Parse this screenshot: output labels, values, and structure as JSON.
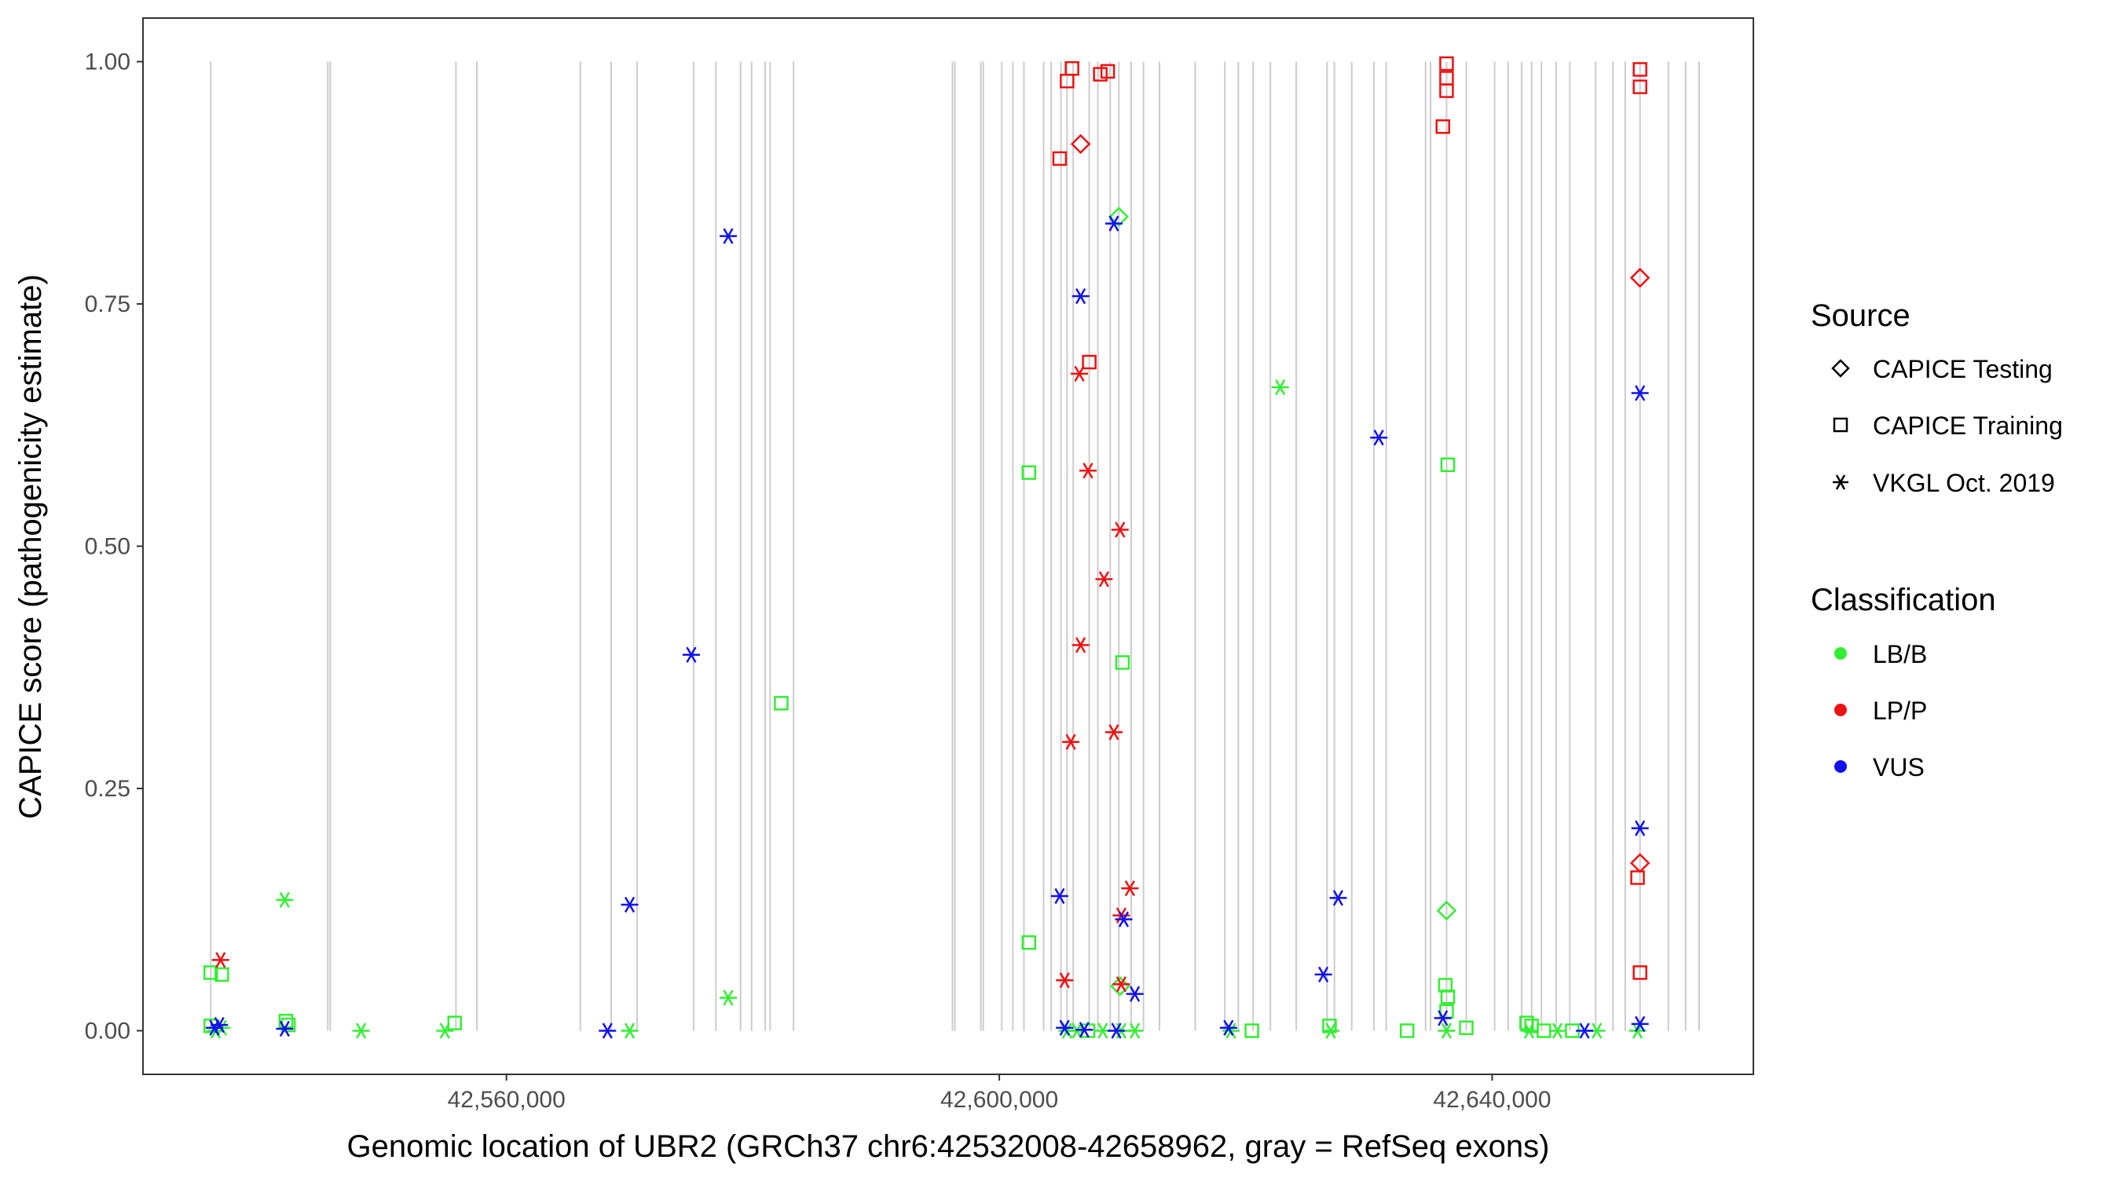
{
  "chart_data": {
    "type": "scatter",
    "xlabel": "Genomic location of UBR2 (GRCh37 chr6:42532008-42658962, gray = RefSeq exons)",
    "ylabel": "CAPICE score (pathogenicity estimate)",
    "xlim": [
      42530500,
      42661200
    ],
    "ylim": [
      -0.045,
      1.045
    ],
    "x_ticks": [
      42560000,
      42600000,
      42640000
    ],
    "x_tick_labels": [
      "42,560,000",
      "42,600,000",
      "42,640,000"
    ],
    "y_ticks": [
      0,
      0.25,
      0.5,
      0.75,
      1.0
    ],
    "y_tick_labels": [
      "0.00",
      "0.25",
      "0.50",
      "0.75",
      "1.00"
    ],
    "exons": [
      42536000,
      42545500,
      42545700,
      42555900,
      42557600,
      42566000,
      42568500,
      42570600,
      42575200,
      42577000,
      42579000,
      42579900,
      42581000,
      42581400,
      42583300,
      42596200,
      42596400,
      42598500,
      42598700,
      42600200,
      42601100,
      42602000,
      42603600,
      42604200,
      42605000,
      42605500,
      42606000,
      42607300,
      42608000,
      42609000,
      42609700,
      42610700,
      42611700,
      42613000,
      42615900,
      42618300,
      42619400,
      42620600,
      42622000,
      42624100,
      42626600,
      42627200,
      42628600,
      42630400,
      42631400,
      42634600,
      42635000,
      42636300,
      42637900,
      42640200,
      42641300,
      42642400,
      42643200,
      42644000,
      42645200,
      42646300,
      42648400,
      42649800,
      42650800,
      42652000,
      42654300,
      42655700,
      42656800
    ],
    "legend_placement": "right",
    "grid": false,
    "legend": {
      "source_title": "Source",
      "source_entries": [
        {
          "key": "testing",
          "label": "CAPICE Testing"
        },
        {
          "key": "training",
          "label": "CAPICE Training"
        },
        {
          "key": "vkgl",
          "label": "VKGL Oct. 2019"
        }
      ],
      "class_title": "Classification",
      "class_entries": [
        {
          "key": "LB",
          "label": "LB/B"
        },
        {
          "key": "LP",
          "label": "LP/P"
        },
        {
          "key": "VUS",
          "label": "VUS"
        }
      ]
    },
    "colors": {
      "LB": "#33ee33",
      "LP": "#ee1111",
      "VUS": "#1111ee",
      "exon": "#cccccc",
      "axis": "#333333",
      "tick": "#333333"
    },
    "series": [
      {
        "name": "LB/B",
        "cls": "LB",
        "points": [
          {
            "x": 42536000,
            "y": 0.06,
            "s": "training"
          },
          {
            "x": 42536900,
            "y": 0.058,
            "s": "training"
          },
          {
            "x": 42536000,
            "y": 0.005,
            "s": "training"
          },
          {
            "x": 42536400,
            "y": 0.0,
            "s": "vkgl"
          },
          {
            "x": 42536900,
            "y": 0.003,
            "s": "vkgl"
          },
          {
            "x": 42542000,
            "y": 0.135,
            "s": "vkgl"
          },
          {
            "x": 42542100,
            "y": 0.01,
            "s": "training"
          },
          {
            "x": 42542300,
            "y": 0.006,
            "s": "training"
          },
          {
            "x": 42548200,
            "y": 0.0,
            "s": "vkgl"
          },
          {
            "x": 42555000,
            "y": 0.0,
            "s": "vkgl"
          },
          {
            "x": 42555800,
            "y": 0.008,
            "s": "training"
          },
          {
            "x": 42570000,
            "y": 0.0,
            "s": "vkgl"
          },
          {
            "x": 42578000,
            "y": 0.034,
            "s": "vkgl"
          },
          {
            "x": 42582300,
            "y": 0.338,
            "s": "training"
          },
          {
            "x": 42602400,
            "y": 0.576,
            "s": "training"
          },
          {
            "x": 42602400,
            "y": 0.091,
            "s": "training"
          },
          {
            "x": 42609700,
            "y": 0.84,
            "s": "testing"
          },
          {
            "x": 42610000,
            "y": 0.38,
            "s": "training"
          },
          {
            "x": 42609800,
            "y": 0.046,
            "s": "testing"
          },
          {
            "x": 42605500,
            "y": 0.0,
            "s": "vkgl"
          },
          {
            "x": 42606300,
            "y": 0.0,
            "s": "vkgl"
          },
          {
            "x": 42607200,
            "y": 0.0,
            "s": "training"
          },
          {
            "x": 42608400,
            "y": 0.0,
            "s": "vkgl"
          },
          {
            "x": 42609900,
            "y": 0.0,
            "s": "vkgl"
          },
          {
            "x": 42611000,
            "y": 0.0,
            "s": "vkgl"
          },
          {
            "x": 42622800,
            "y": 0.664,
            "s": "vkgl"
          },
          {
            "x": 42618800,
            "y": 0.0,
            "s": "vkgl"
          },
          {
            "x": 42620500,
            "y": 0.0,
            "s": "training"
          },
          {
            "x": 42626800,
            "y": 0.005,
            "s": "training"
          },
          {
            "x": 42626900,
            "y": 0.0,
            "s": "vkgl"
          },
          {
            "x": 42633100,
            "y": 0.0,
            "s": "training"
          },
          {
            "x": 42636400,
            "y": 0.584,
            "s": "training"
          },
          {
            "x": 42636300,
            "y": 0.124,
            "s": "testing"
          },
          {
            "x": 42636200,
            "y": 0.047,
            "s": "training"
          },
          {
            "x": 42636400,
            "y": 0.035,
            "s": "training"
          },
          {
            "x": 42636300,
            "y": 0.02,
            "s": "training"
          },
          {
            "x": 42636300,
            "y": 0.0,
            "s": "vkgl"
          },
          {
            "x": 42637900,
            "y": 0.003,
            "s": "training"
          },
          {
            "x": 42642800,
            "y": 0.008,
            "s": "training"
          },
          {
            "x": 42643200,
            "y": 0.005,
            "s": "training"
          },
          {
            "x": 42643000,
            "y": 0.0,
            "s": "vkgl"
          },
          {
            "x": 42644200,
            "y": 0.0,
            "s": "training"
          },
          {
            "x": 42645300,
            "y": 0.0,
            "s": "vkgl"
          },
          {
            "x": 42646500,
            "y": 0.0,
            "s": "training"
          },
          {
            "x": 42648500,
            "y": 0.0,
            "s": "vkgl"
          },
          {
            "x": 42651800,
            "y": 0.0,
            "s": "vkgl"
          }
        ]
      },
      {
        "name": "LP/P",
        "cls": "LP",
        "points": [
          {
            "x": 42536800,
            "y": 0.073,
            "s": "vkgl"
          },
          {
            "x": 42605900,
            "y": 0.993,
            "s": "training"
          },
          {
            "x": 42605500,
            "y": 0.98,
            "s": "training"
          },
          {
            "x": 42608200,
            "y": 0.987,
            "s": "training"
          },
          {
            "x": 42608800,
            "y": 0.99,
            "s": "training"
          },
          {
            "x": 42606600,
            "y": 0.915,
            "s": "testing"
          },
          {
            "x": 42604900,
            "y": 0.9,
            "s": "training"
          },
          {
            "x": 42607300,
            "y": 0.69,
            "s": "training"
          },
          {
            "x": 42606500,
            "y": 0.678,
            "s": "vkgl"
          },
          {
            "x": 42607200,
            "y": 0.578,
            "s": "vkgl"
          },
          {
            "x": 42609800,
            "y": 0.517,
            "s": "vkgl"
          },
          {
            "x": 42608500,
            "y": 0.466,
            "s": "vkgl"
          },
          {
            "x": 42606600,
            "y": 0.398,
            "s": "vkgl"
          },
          {
            "x": 42609300,
            "y": 0.308,
            "s": "vkgl"
          },
          {
            "x": 42605800,
            "y": 0.298,
            "s": "vkgl"
          },
          {
            "x": 42610600,
            "y": 0.147,
            "s": "vkgl"
          },
          {
            "x": 42609900,
            "y": 0.119,
            "s": "vkgl"
          },
          {
            "x": 42605300,
            "y": 0.052,
            "s": "vkgl"
          },
          {
            "x": 42609900,
            "y": 0.048,
            "s": "vkgl"
          },
          {
            "x": 42636300,
            "y": 0.998,
            "s": "training"
          },
          {
            "x": 42636300,
            "y": 0.983,
            "s": "training"
          },
          {
            "x": 42636300,
            "y": 0.97,
            "s": "training"
          },
          {
            "x": 42636000,
            "y": 0.933,
            "s": "training"
          },
          {
            "x": 42652000,
            "y": 0.992,
            "s": "training"
          },
          {
            "x": 42652000,
            "y": 0.974,
            "s": "training"
          },
          {
            "x": 42652000,
            "y": 0.777,
            "s": "testing"
          },
          {
            "x": 42652000,
            "y": 0.173,
            "s": "testing"
          },
          {
            "x": 42651800,
            "y": 0.158,
            "s": "training"
          },
          {
            "x": 42652000,
            "y": 0.06,
            "s": "training"
          }
        ]
      },
      {
        "name": "VUS",
        "cls": "VUS",
        "points": [
          {
            "x": 42536300,
            "y": 0.003,
            "s": "vkgl"
          },
          {
            "x": 42536700,
            "y": 0.006,
            "s": "vkgl"
          },
          {
            "x": 42542000,
            "y": 0.002,
            "s": "vkgl"
          },
          {
            "x": 42568200,
            "y": 0.0,
            "s": "vkgl"
          },
          {
            "x": 42570000,
            "y": 0.13,
            "s": "vkgl"
          },
          {
            "x": 42575000,
            "y": 0.388,
            "s": "vkgl"
          },
          {
            "x": 42578000,
            "y": 0.82,
            "s": "vkgl"
          },
          {
            "x": 42609300,
            "y": 0.833,
            "s": "vkgl"
          },
          {
            "x": 42606600,
            "y": 0.758,
            "s": "vkgl"
          },
          {
            "x": 42604900,
            "y": 0.139,
            "s": "vkgl"
          },
          {
            "x": 42610100,
            "y": 0.115,
            "s": "vkgl"
          },
          {
            "x": 42611000,
            "y": 0.038,
            "s": "vkgl"
          },
          {
            "x": 42605300,
            "y": 0.003,
            "s": "vkgl"
          },
          {
            "x": 42606900,
            "y": 0.001,
            "s": "vkgl"
          },
          {
            "x": 42609500,
            "y": 0.0,
            "s": "vkgl"
          },
          {
            "x": 42618600,
            "y": 0.003,
            "s": "vkgl"
          },
          {
            "x": 42630800,
            "y": 0.612,
            "s": "vkgl"
          },
          {
            "x": 42627500,
            "y": 0.137,
            "s": "vkgl"
          },
          {
            "x": 42626300,
            "y": 0.058,
            "s": "vkgl"
          },
          {
            "x": 42636000,
            "y": 0.013,
            "s": "vkgl"
          },
          {
            "x": 42647500,
            "y": 0.0,
            "s": "vkgl"
          },
          {
            "x": 42652000,
            "y": 0.658,
            "s": "vkgl"
          },
          {
            "x": 42652000,
            "y": 0.209,
            "s": "vkgl"
          },
          {
            "x": 42652000,
            "y": 0.007,
            "s": "vkgl"
          }
        ]
      }
    ]
  }
}
